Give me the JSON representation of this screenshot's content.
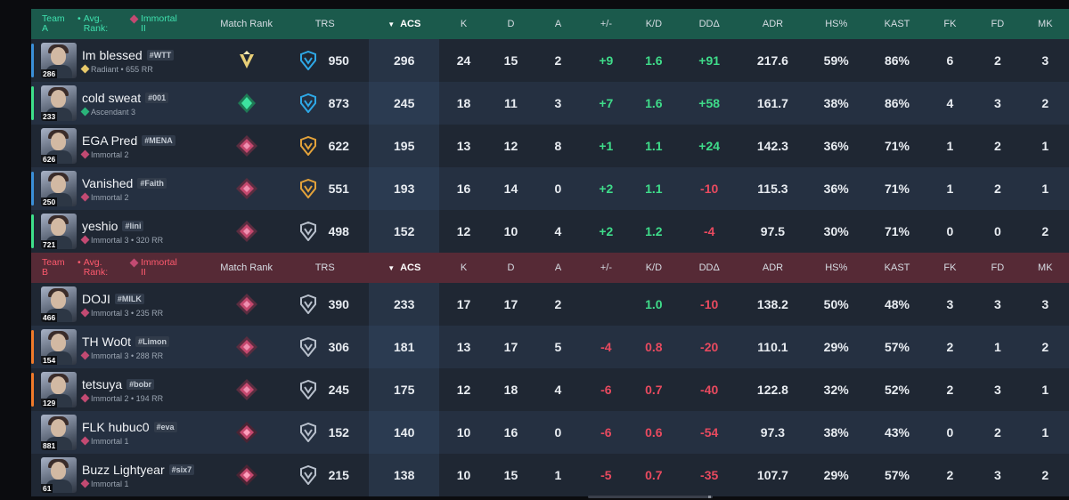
{
  "colors": {
    "teamA": "#1b5a4c",
    "teamB": "#562a36",
    "positive": "#3fdc8a",
    "negative": "#e84a5f",
    "radiant": "#e6c86a",
    "ascendant": "#2ab47a",
    "immortal": "#c24a72"
  },
  "columns": {
    "match_rank": "Match Rank",
    "trs": "TRS",
    "acs": "ACS",
    "k": "K",
    "d": "D",
    "a": "A",
    "pm": "+/-",
    "kd": "K/D",
    "dd": "DDΔ",
    "adr": "ADR",
    "hs": "HS%",
    "kast": "KAST",
    "fk": "FK",
    "fd": "FD",
    "mk": "MK",
    "acs_sort_icon": "sort-desc-icon"
  },
  "teamA": {
    "team_line1": "Team",
    "team_line2": "A",
    "avg_line1": "Avg.",
    "avg_line2": "Rank:",
    "rank_line1": "Immortal",
    "rank_line2": "II",
    "players": [
      {
        "name": "Im blessed",
        "tag": "#WTT",
        "level": "286",
        "rank": "Radiant • 655 RR",
        "rank_icon": "radiant",
        "accent": "#3a8fd8",
        "trs": "950",
        "trs_icon": "blue",
        "acs": "296",
        "k": "24",
        "d": "15",
        "a": "2",
        "pm": "+9",
        "kd": "1.6",
        "dd": "+91",
        "adr": "217.6",
        "hs": "59%",
        "kast": "86%",
        "fk": "6",
        "fd": "2",
        "mk": "3",
        "match_rank": "radiant"
      },
      {
        "name": "cold sweat",
        "tag": "#001",
        "level": "233",
        "rank": "Ascendant 3",
        "rank_icon": "ascendant",
        "accent": "#3ee08a",
        "trs": "873",
        "trs_icon": "blue",
        "acs": "245",
        "k": "18",
        "d": "11",
        "a": "3",
        "pm": "+7",
        "kd": "1.6",
        "dd": "+58",
        "adr": "161.7",
        "hs": "38%",
        "kast": "86%",
        "fk": "4",
        "fd": "3",
        "mk": "2",
        "match_rank": "ascendant"
      },
      {
        "name": "EGA Pred",
        "tag": "#MENA",
        "level": "626",
        "rank": "Immortal 2",
        "rank_icon": "immortal",
        "accent": "",
        "trs": "622",
        "trs_icon": "gold",
        "acs": "195",
        "k": "13",
        "d": "12",
        "a": "8",
        "pm": "+1",
        "kd": "1.1",
        "dd": "+24",
        "adr": "142.3",
        "hs": "36%",
        "kast": "71%",
        "fk": "1",
        "fd": "2",
        "mk": "1",
        "match_rank": "immortal"
      },
      {
        "name": "Vanished",
        "tag": "#Faith",
        "level": "250",
        "rank": "Immortal 2",
        "rank_icon": "immortal",
        "accent": "#3a8fd8",
        "trs": "551",
        "trs_icon": "gold",
        "acs": "193",
        "k": "16",
        "d": "14",
        "a": "0",
        "pm": "+2",
        "kd": "1.1",
        "dd": "-10",
        "adr": "115.3",
        "hs": "36%",
        "kast": "71%",
        "fk": "1",
        "fd": "2",
        "mk": "1",
        "match_rank": "immortal"
      },
      {
        "name": "yeshio",
        "tag": "#lini",
        "level": "721",
        "rank": "Immortal 3 • 320 RR",
        "rank_icon": "immortal",
        "accent": "#3ee08a",
        "trs": "498",
        "trs_icon": "silver",
        "acs": "152",
        "k": "12",
        "d": "10",
        "a": "4",
        "pm": "+2",
        "kd": "1.2",
        "dd": "-4",
        "adr": "97.5",
        "hs": "30%",
        "kast": "71%",
        "fk": "0",
        "fd": "0",
        "mk": "2",
        "match_rank": "immortal"
      }
    ]
  },
  "teamB": {
    "team_line1": "Team",
    "team_line2": "B",
    "avg_line1": "Avg.",
    "avg_line2": "Rank:",
    "rank_line1": "Immortal",
    "rank_line2": "II",
    "players": [
      {
        "name": "DOJI",
        "tag": "#MILK",
        "level": "466",
        "rank": "Immortal 3 • 235 RR",
        "rank_icon": "immortal",
        "accent": "",
        "trs": "390",
        "trs_icon": "silver",
        "acs": "233",
        "k": "17",
        "d": "17",
        "a": "2",
        "pm": "",
        "kd": "1.0",
        "dd": "-10",
        "adr": "138.2",
        "hs": "50%",
        "kast": "48%",
        "fk": "3",
        "fd": "3",
        "mk": "3",
        "match_rank": "immortal"
      },
      {
        "name": "TH Wo0t",
        "tag": "#Limon",
        "level": "154",
        "rank": "Immortal 3 • 288 RR",
        "rank_icon": "immortal",
        "accent": "#f07a2a",
        "trs": "306",
        "trs_icon": "silver",
        "acs": "181",
        "k": "13",
        "d": "17",
        "a": "5",
        "pm": "-4",
        "kd": "0.8",
        "dd": "-20",
        "adr": "110.1",
        "hs": "29%",
        "kast": "57%",
        "fk": "2",
        "fd": "1",
        "mk": "2",
        "match_rank": "immortal"
      },
      {
        "name": "tetsuya",
        "tag": "#bobr",
        "level": "129",
        "rank": "Immortal 2 • 194 RR",
        "rank_icon": "immortal",
        "accent": "#f07a2a",
        "trs": "245",
        "trs_icon": "silver",
        "acs": "175",
        "k": "12",
        "d": "18",
        "a": "4",
        "pm": "-6",
        "kd": "0.7",
        "dd": "-40",
        "adr": "122.8",
        "hs": "32%",
        "kast": "52%",
        "fk": "2",
        "fd": "3",
        "mk": "1",
        "match_rank": "immortal"
      },
      {
        "name": "FLK hubuc0",
        "tag": "#eva",
        "level": "881",
        "rank": "Immortal 1",
        "rank_icon": "immortal",
        "accent": "",
        "trs": "152",
        "trs_icon": "silver",
        "acs": "140",
        "k": "10",
        "d": "16",
        "a": "0",
        "pm": "-6",
        "kd": "0.6",
        "dd": "-54",
        "adr": "97.3",
        "hs": "38%",
        "kast": "43%",
        "fk": "0",
        "fd": "2",
        "mk": "1",
        "match_rank": "immortal1"
      },
      {
        "name": "Buzz Lightyear",
        "tag": "#six7",
        "level": "61",
        "rank": "Immortal 1",
        "rank_icon": "immortal",
        "accent": "",
        "trs": "215",
        "trs_icon": "silver",
        "acs": "138",
        "k": "10",
        "d": "15",
        "a": "1",
        "pm": "-5",
        "kd": "0.7",
        "dd": "-35",
        "adr": "107.7",
        "hs": "29%",
        "kast": "57%",
        "fk": "2",
        "fd": "3",
        "mk": "2",
        "match_rank": "immortal1"
      }
    ]
  }
}
